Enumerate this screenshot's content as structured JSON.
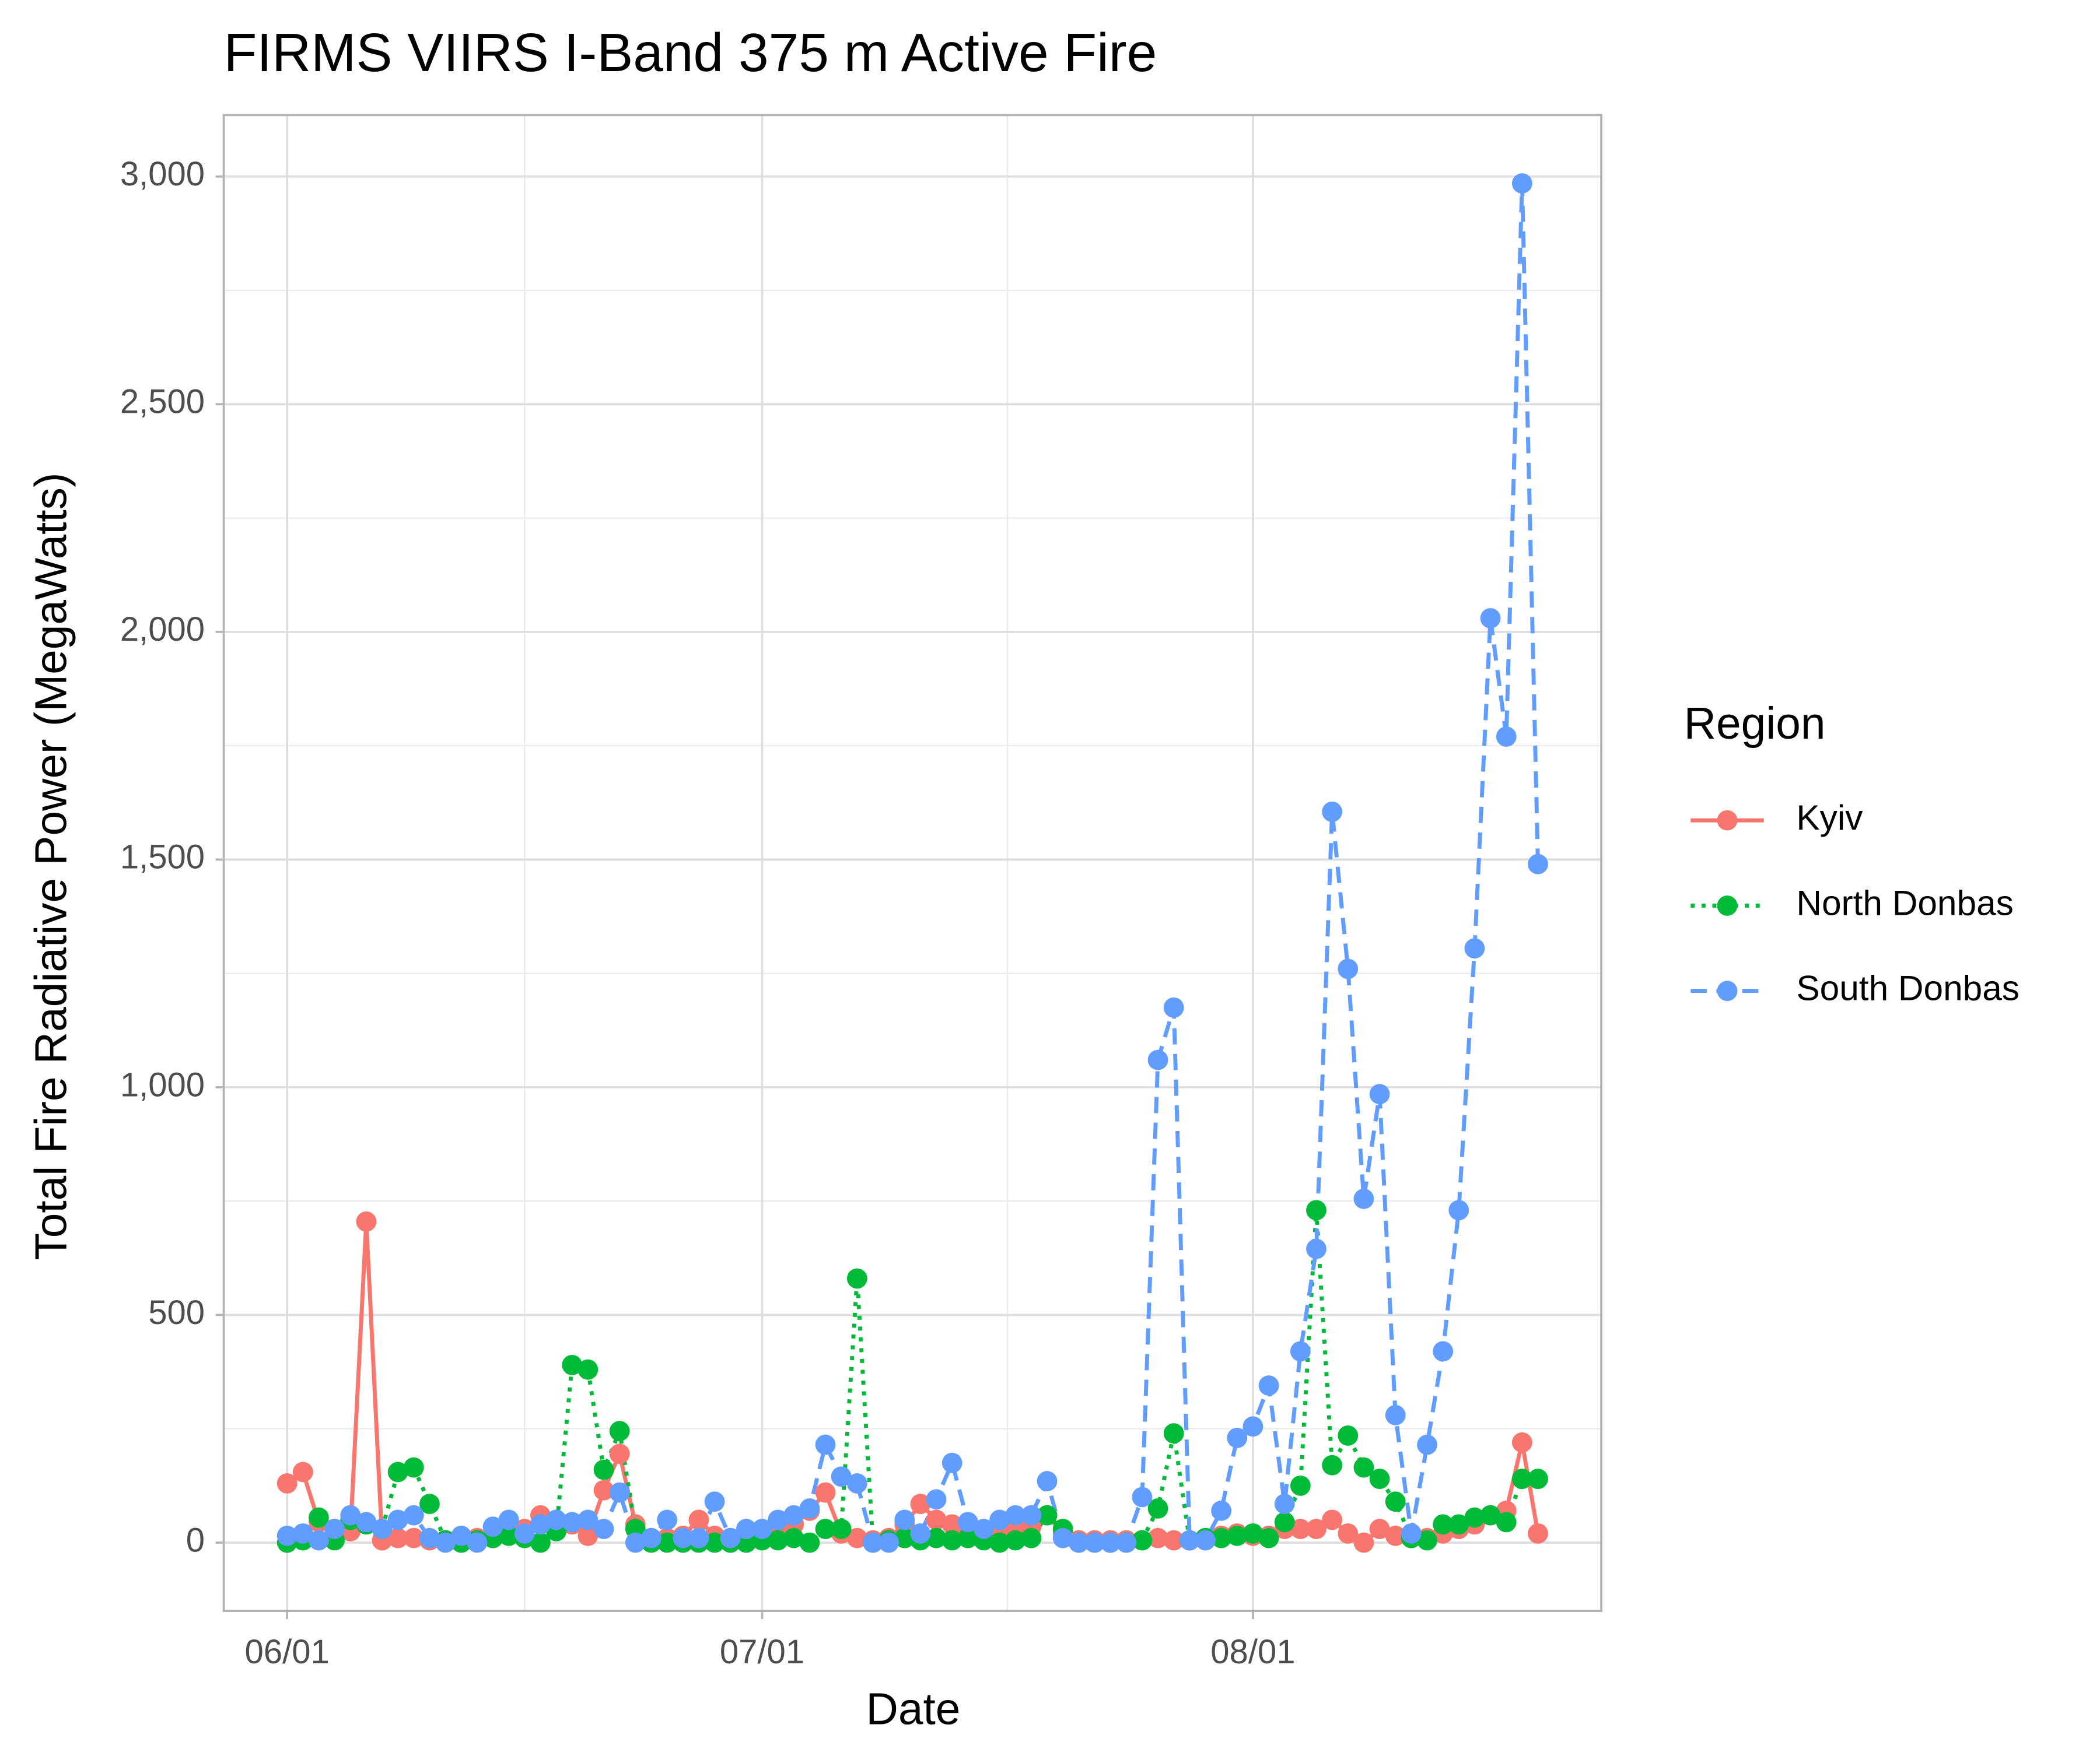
{
  "chart_data": {
    "type": "line",
    "title": "FIRMS VIIRS I-Band 375 m Active Fire",
    "x_label": "Date",
    "y_label": "Total Fire Radiative Power (MegaWatts)",
    "legend_title": "Region",
    "legend_position": "right",
    "grid": true,
    "x": [
      "06/01",
      "06/02",
      "06/03",
      "06/04",
      "06/05",
      "06/06",
      "06/07",
      "06/08",
      "06/09",
      "06/10",
      "06/11",
      "06/12",
      "06/13",
      "06/14",
      "06/15",
      "06/16",
      "06/17",
      "06/18",
      "06/19",
      "06/20",
      "06/21",
      "06/22",
      "06/23",
      "06/24",
      "06/25",
      "06/26",
      "06/27",
      "06/28",
      "06/29",
      "06/30",
      "07/01",
      "07/02",
      "07/03",
      "07/04",
      "07/05",
      "07/06",
      "07/07",
      "07/08",
      "07/09",
      "07/10",
      "07/11",
      "07/12",
      "07/13",
      "07/14",
      "07/15",
      "07/16",
      "07/17",
      "07/18",
      "07/19",
      "07/20",
      "07/21",
      "07/22",
      "07/23",
      "07/24",
      "07/25",
      "07/26",
      "07/27",
      "07/28",
      "07/29",
      "07/30",
      "07/31",
      "08/01",
      "08/02",
      "08/03",
      "08/04",
      "08/05",
      "08/06",
      "08/07",
      "08/08",
      "08/09",
      "08/10",
      "08/11",
      "08/12",
      "08/13",
      "08/14",
      "08/15",
      "08/16",
      "08/17",
      "08/18",
      "08/19"
    ],
    "xlim": [
      "05/28",
      "08/23"
    ],
    "xticks": [
      "06/01",
      "07/01",
      "08/01"
    ],
    "ylim": [
      -150,
      3135
    ],
    "yticks": [
      0,
      500,
      {
        "value": 1000,
        "label": "1,000"
      },
      {
        "value": 1500,
        "label": "1,500"
      },
      {
        "value": 2000,
        "label": "2,000"
      },
      {
        "value": 2500,
        "label": "2,500"
      },
      {
        "value": 3000,
        "label": "3,000"
      }
    ],
    "series": [
      {
        "name": "Kyiv",
        "color": "#F8766D",
        "linetype": "solid",
        "values": [
          130,
          155,
          45,
          30,
          25,
          705,
          5,
          10,
          10,
          5,
          5,
          5,
          10,
          15,
          20,
          30,
          60,
          50,
          40,
          15,
          115,
          195,
          40,
          10,
          10,
          15,
          50,
          15,
          10,
          10,
          15,
          20,
          40,
          70,
          110,
          20,
          10,
          5,
          10,
          40,
          85,
          50,
          40,
          20,
          20,
          25,
          30,
          35,
          60,
          20,
          5,
          5,
          5,
          5,
          5,
          10,
          5,
          5,
          10,
          15,
          20,
          15,
          15,
          30,
          30,
          30,
          50,
          20,
          0,
          30,
          15,
          10,
          10,
          20,
          30,
          40,
          60,
          70,
          220,
          20
        ]
      },
      {
        "name": "North Donbas",
        "color": "#00BA38",
        "linetype": "dotted",
        "values": [
          0,
          5,
          55,
          5,
          50,
          40,
          30,
          155,
          165,
          85,
          5,
          0,
          5,
          10,
          15,
          10,
          0,
          25,
          390,
          380,
          160,
          245,
          30,
          0,
          0,
          0,
          0,
          0,
          0,
          0,
          5,
          5,
          10,
          0,
          30,
          30,
          580,
          0,
          5,
          10,
          5,
          10,
          5,
          10,
          5,
          0,
          5,
          10,
          60,
          30,
          0,
          0,
          0,
          0,
          5,
          75,
          240,
          5,
          10,
          10,
          15,
          20,
          10,
          45,
          125,
          730,
          170,
          235,
          165,
          140,
          90,
          10,
          5,
          40,
          40,
          55,
          60,
          45,
          140,
          140
        ]
      },
      {
        "name": "South Donbas",
        "color": "#619CFF",
        "linetype": "dashed",
        "values": [
          15,
          20,
          5,
          30,
          60,
          45,
          30,
          50,
          60,
          10,
          0,
          15,
          0,
          35,
          50,
          20,
          40,
          50,
          45,
          50,
          30,
          110,
          0,
          10,
          50,
          10,
          10,
          90,
          10,
          30,
          30,
          50,
          60,
          75,
          215,
          145,
          130,
          0,
          0,
          50,
          20,
          95,
          175,
          45,
          30,
          50,
          60,
          60,
          135,
          10,
          0,
          0,
          0,
          0,
          100,
          1060,
          1175,
          5,
          5,
          70,
          230,
          255,
          345,
          85,
          420,
          645,
          1605,
          1260,
          755,
          985,
          280,
          20,
          215,
          420,
          730,
          1305,
          2030,
          1770,
          2985,
          1490
        ]
      }
    ]
  }
}
